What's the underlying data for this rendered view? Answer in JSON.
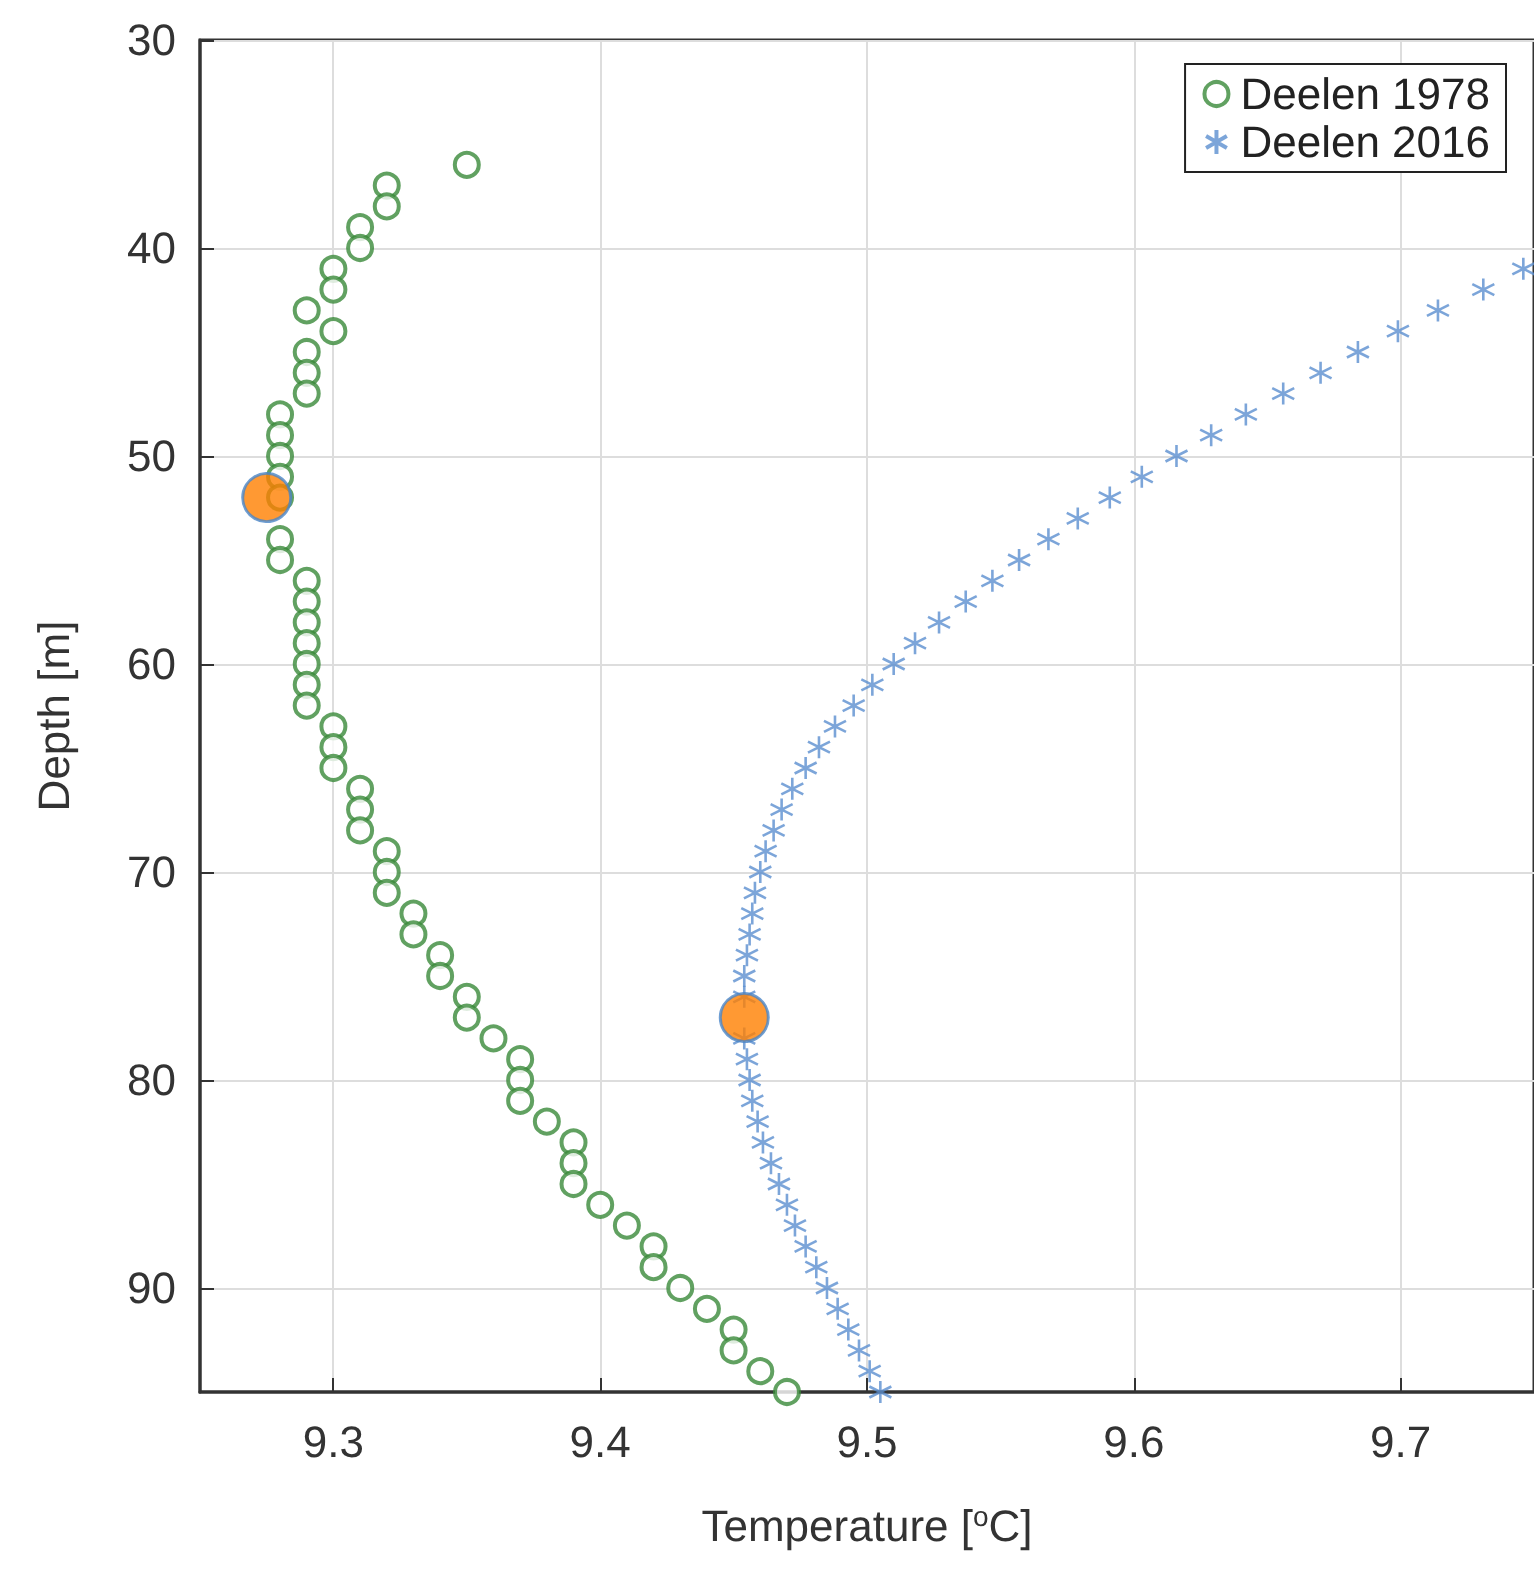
{
  "chart_data": {
    "type": "scatter",
    "xlabel": "Temperature [$^{o}$C]",
    "ylabel": "Depth [m]",
    "xlim": [
      9.25,
      9.75
    ],
    "xticks": [
      9.3,
      9.4,
      9.5,
      9.6,
      9.7
    ],
    "ylim": [
      95,
      30
    ],
    "yticks": [
      30,
      40,
      50,
      60,
      70,
      80,
      90
    ],
    "grid": true,
    "legend": "top right",
    "series": [
      {
        "name": "Deelen 1978",
        "color": "#3a8a3a",
        "marker": "circle",
        "x": [
          9.35,
          9.32,
          9.32,
          9.31,
          9.31,
          9.3,
          9.3,
          9.29,
          9.3,
          9.29,
          9.29,
          9.29,
          9.28,
          9.28,
          9.28,
          9.28,
          9.28,
          null,
          9.28,
          9.28,
          9.29,
          9.29,
          9.29,
          9.29,
          9.29,
          9.29,
          9.29,
          9.3,
          9.3,
          9.3,
          9.31,
          9.31,
          9.31,
          9.32,
          9.32,
          9.32,
          9.33,
          9.33,
          9.34,
          9.34,
          9.35,
          9.35,
          9.36,
          9.37,
          9.37,
          9.37,
          9.38,
          9.39,
          9.39,
          9.39,
          9.4,
          9.41,
          9.42,
          9.42,
          9.43,
          9.44,
          9.45,
          9.45,
          9.46,
          9.47
        ],
        "values": [
          36,
          37,
          38,
          39,
          40,
          41,
          42,
          43,
          44,
          45,
          46,
          47,
          48,
          49,
          50,
          51,
          52,
          null,
          54,
          55,
          56,
          57,
          58,
          59,
          60,
          61,
          62,
          63,
          64,
          65,
          66,
          67,
          68,
          69,
          70,
          71,
          72,
          73,
          74,
          75,
          76,
          77,
          78,
          79,
          80,
          81,
          82,
          83,
          84,
          85,
          86,
          87,
          88,
          89,
          90,
          91,
          92,
          93,
          94,
          95
        ]
      },
      {
        "name": "Deelen 2016",
        "color": "#5b8fd0",
        "marker": "cross",
        "x": [
          9.746,
          9.731,
          9.714,
          9.699,
          9.684,
          9.67,
          9.656,
          9.642,
          9.629,
          9.616,
          9.603,
          9.591,
          9.579,
          9.568,
          9.557,
          9.547,
          9.537,
          9.527,
          9.518,
          9.51,
          9.502,
          9.495,
          9.488,
          9.482,
          9.477,
          9.472,
          9.468,
          9.465,
          9.462,
          9.46,
          9.458,
          9.457,
          9.456,
          9.455,
          9.454,
          9.454,
          null,
          9.454,
          9.455,
          9.456,
          9.457,
          9.459,
          9.461,
          9.464,
          9.467,
          9.47,
          9.473,
          9.477,
          9.481,
          9.485,
          9.489,
          9.493,
          9.497,
          9.501,
          9.505
        ],
        "values": [
          41,
          42,
          43,
          44,
          45,
          46,
          47,
          48,
          49,
          50,
          51,
          52,
          53,
          54,
          55,
          56,
          57,
          58,
          59,
          60,
          61,
          62,
          63,
          64,
          65,
          66,
          67,
          68,
          69,
          70,
          71,
          72,
          73,
          74,
          75,
          76,
          null,
          78,
          79,
          80,
          81,
          82,
          83,
          84,
          85,
          86,
          87,
          88,
          89,
          90,
          91,
          92,
          93,
          94,
          95
        ]
      },
      {
        "color": "#ff7f00",
        "marker": "circle",
        "x": [
          9.275,
          9.454
        ],
        "values": [
          52,
          77
        ]
      }
    ]
  }
}
